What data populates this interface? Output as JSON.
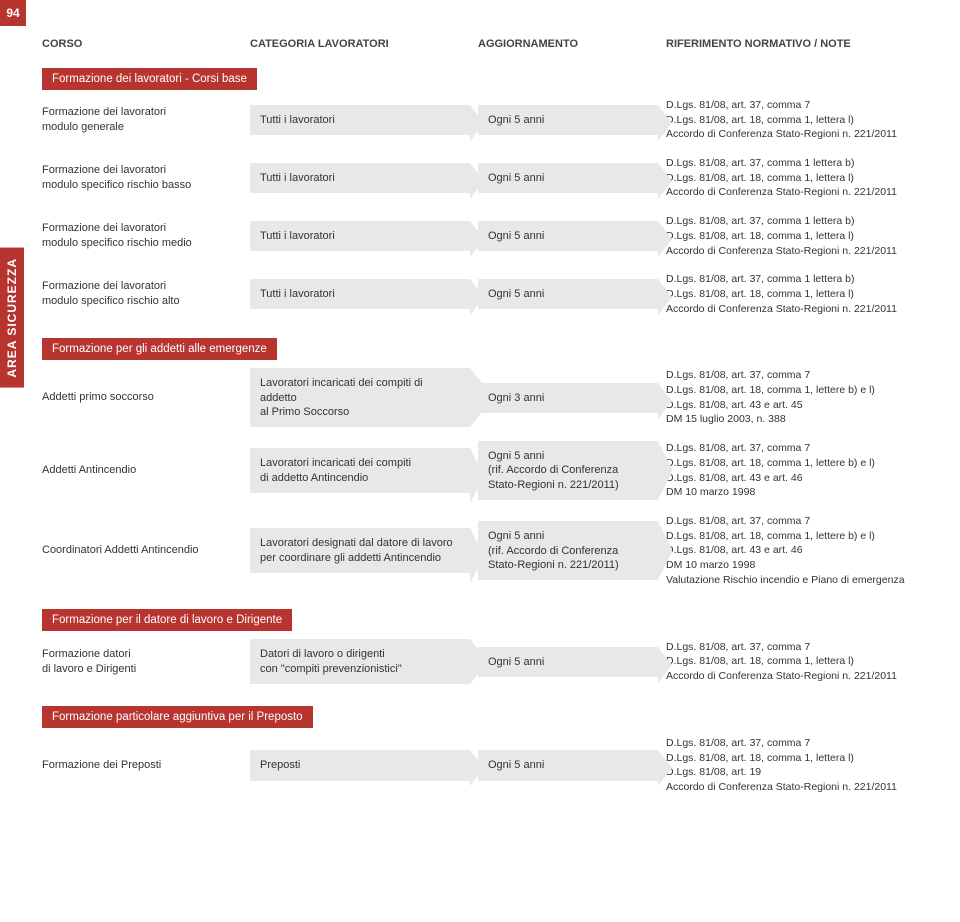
{
  "page_number": "94",
  "vtab": "AREA SICUREZZA",
  "headers": {
    "c1": "CORSO",
    "c2": "CATEGORIA LAVORATORI",
    "c3": "AGGIORNAMENTO",
    "c4": "RIFERIMENTO NORMATIVO / NOTE"
  },
  "sections": [
    {
      "title": "Formazione dei lavoratori - Corsi base",
      "rows": [
        {
          "c1": "Formazione dei lavoratori\nmodulo generale",
          "c2": "Tutti i lavoratori",
          "c3": "Ogni 5 anni",
          "c4": "D.Lgs. 81/08, art. 37, comma 7\nD.Lgs. 81/08, art. 18, comma 1, lettera l)\nAccordo di Conferenza Stato-Regioni n. 221/2011"
        },
        {
          "c1": "Formazione dei lavoratori\nmodulo specifico rischio basso",
          "c2": "Tutti i lavoratori",
          "c3": "Ogni 5 anni",
          "c4": "D.Lgs. 81/08, art. 37, comma 1 lettera b)\nD.Lgs. 81/08, art. 18, comma 1, lettera l)\nAccordo di Conferenza Stato-Regioni n. 221/2011"
        },
        {
          "c1": "Formazione dei lavoratori\nmodulo specifico rischio medio",
          "c2": "Tutti i lavoratori",
          "c3": "Ogni 5 anni",
          "c4": "D.Lgs. 81/08, art. 37, comma 1 lettera b)\nD.Lgs. 81/08, art. 18, comma 1, lettera l)\nAccordo di Conferenza Stato-Regioni n. 221/2011"
        },
        {
          "c1": "Formazione dei lavoratori\nmodulo specifico rischio alto",
          "c2": "Tutti i lavoratori",
          "c3": "Ogni 5 anni",
          "c4": "D.Lgs. 81/08, art. 37, comma 1 lettera b)\nD.Lgs. 81/08, art. 18, comma 1, lettera l)\nAccordo di Conferenza Stato-Regioni n. 221/2011"
        }
      ]
    },
    {
      "title": "Formazione per gli addetti alle emergenze",
      "rows": [
        {
          "c1": "Addetti primo soccorso",
          "c2": "Lavoratori incaricati dei compiti di addetto\nal Primo Soccorso",
          "c3": "Ogni 3 anni",
          "c4": "D.Lgs. 81/08, art. 37, comma 7\nD.Lgs. 81/08, art. 18, comma 1, lettere b) e l)\nD.Lgs. 81/08, art. 43 e art. 45\nDM 15 luglio 2003, n. 388"
        },
        {
          "c1": "Addetti Antincendio",
          "c2": "Lavoratori incaricati dei compiti\ndi addetto Antincendio",
          "c3": "Ogni 5 anni\n(rif. Accordo di Conferenza Stato-Regioni n. 221/2011)",
          "c4": "D.Lgs. 81/08, art. 37, comma 7\nD.Lgs. 81/08, art. 18, comma 1, lettere b) e l)\nD.Lgs. 81/08, art. 43 e art. 46\nDM 10 marzo 1998",
          "tall": true
        },
        {
          "c1": "Coordinatori Addetti Antincendio",
          "c2": "Lavoratori designati dal datore di lavoro\nper coordinare gli addetti Antincendio",
          "c3": "Ogni 5 anni\n(rif. Accordo di Conferenza Stato-Regioni n. 221/2011)",
          "c4": "D.Lgs. 81/08, art. 37, comma 7\nD.Lgs. 81/08, art. 18, comma 1, lettere b) e l)\nD.Lgs. 81/08, art. 43 e art. 46\nDM 10 marzo 1998\nValutazione Rischio incendio e Piano di emergenza",
          "tall": true
        }
      ]
    },
    {
      "title": "Formazione per il datore di lavoro e Dirigente",
      "rows": [
        {
          "c1": "Formazione datori\ndi lavoro e Dirigenti",
          "c2": "Datori di lavoro o dirigenti\ncon \"compiti prevenzionistici\"",
          "c3": "Ogni 5 anni",
          "c4": "D.Lgs. 81/08, art. 37, comma 7\nD.Lgs. 81/08, art. 18, comma 1, lettera l)\nAccordo di Conferenza Stato-Regioni n. 221/2011"
        }
      ]
    },
    {
      "title": "Formazione particolare aggiuntiva per il Preposto",
      "rows": [
        {
          "c1": "Formazione dei Preposti",
          "c2": "Preposti",
          "c3": "Ogni 5 anni",
          "c4": "D.Lgs. 81/08, art. 37, comma 7\nD.Lgs. 81/08, art. 18, comma 1, lettera l)\nD.Lgs. 81/08, art. 19\nAccordo di Conferenza Stato-Regioni n. 221/2011"
        }
      ]
    }
  ],
  "colors": {
    "accent": "#b8342f",
    "grey_box": "#e8e8e8",
    "text": "#333333",
    "bg": "#ffffff"
  }
}
